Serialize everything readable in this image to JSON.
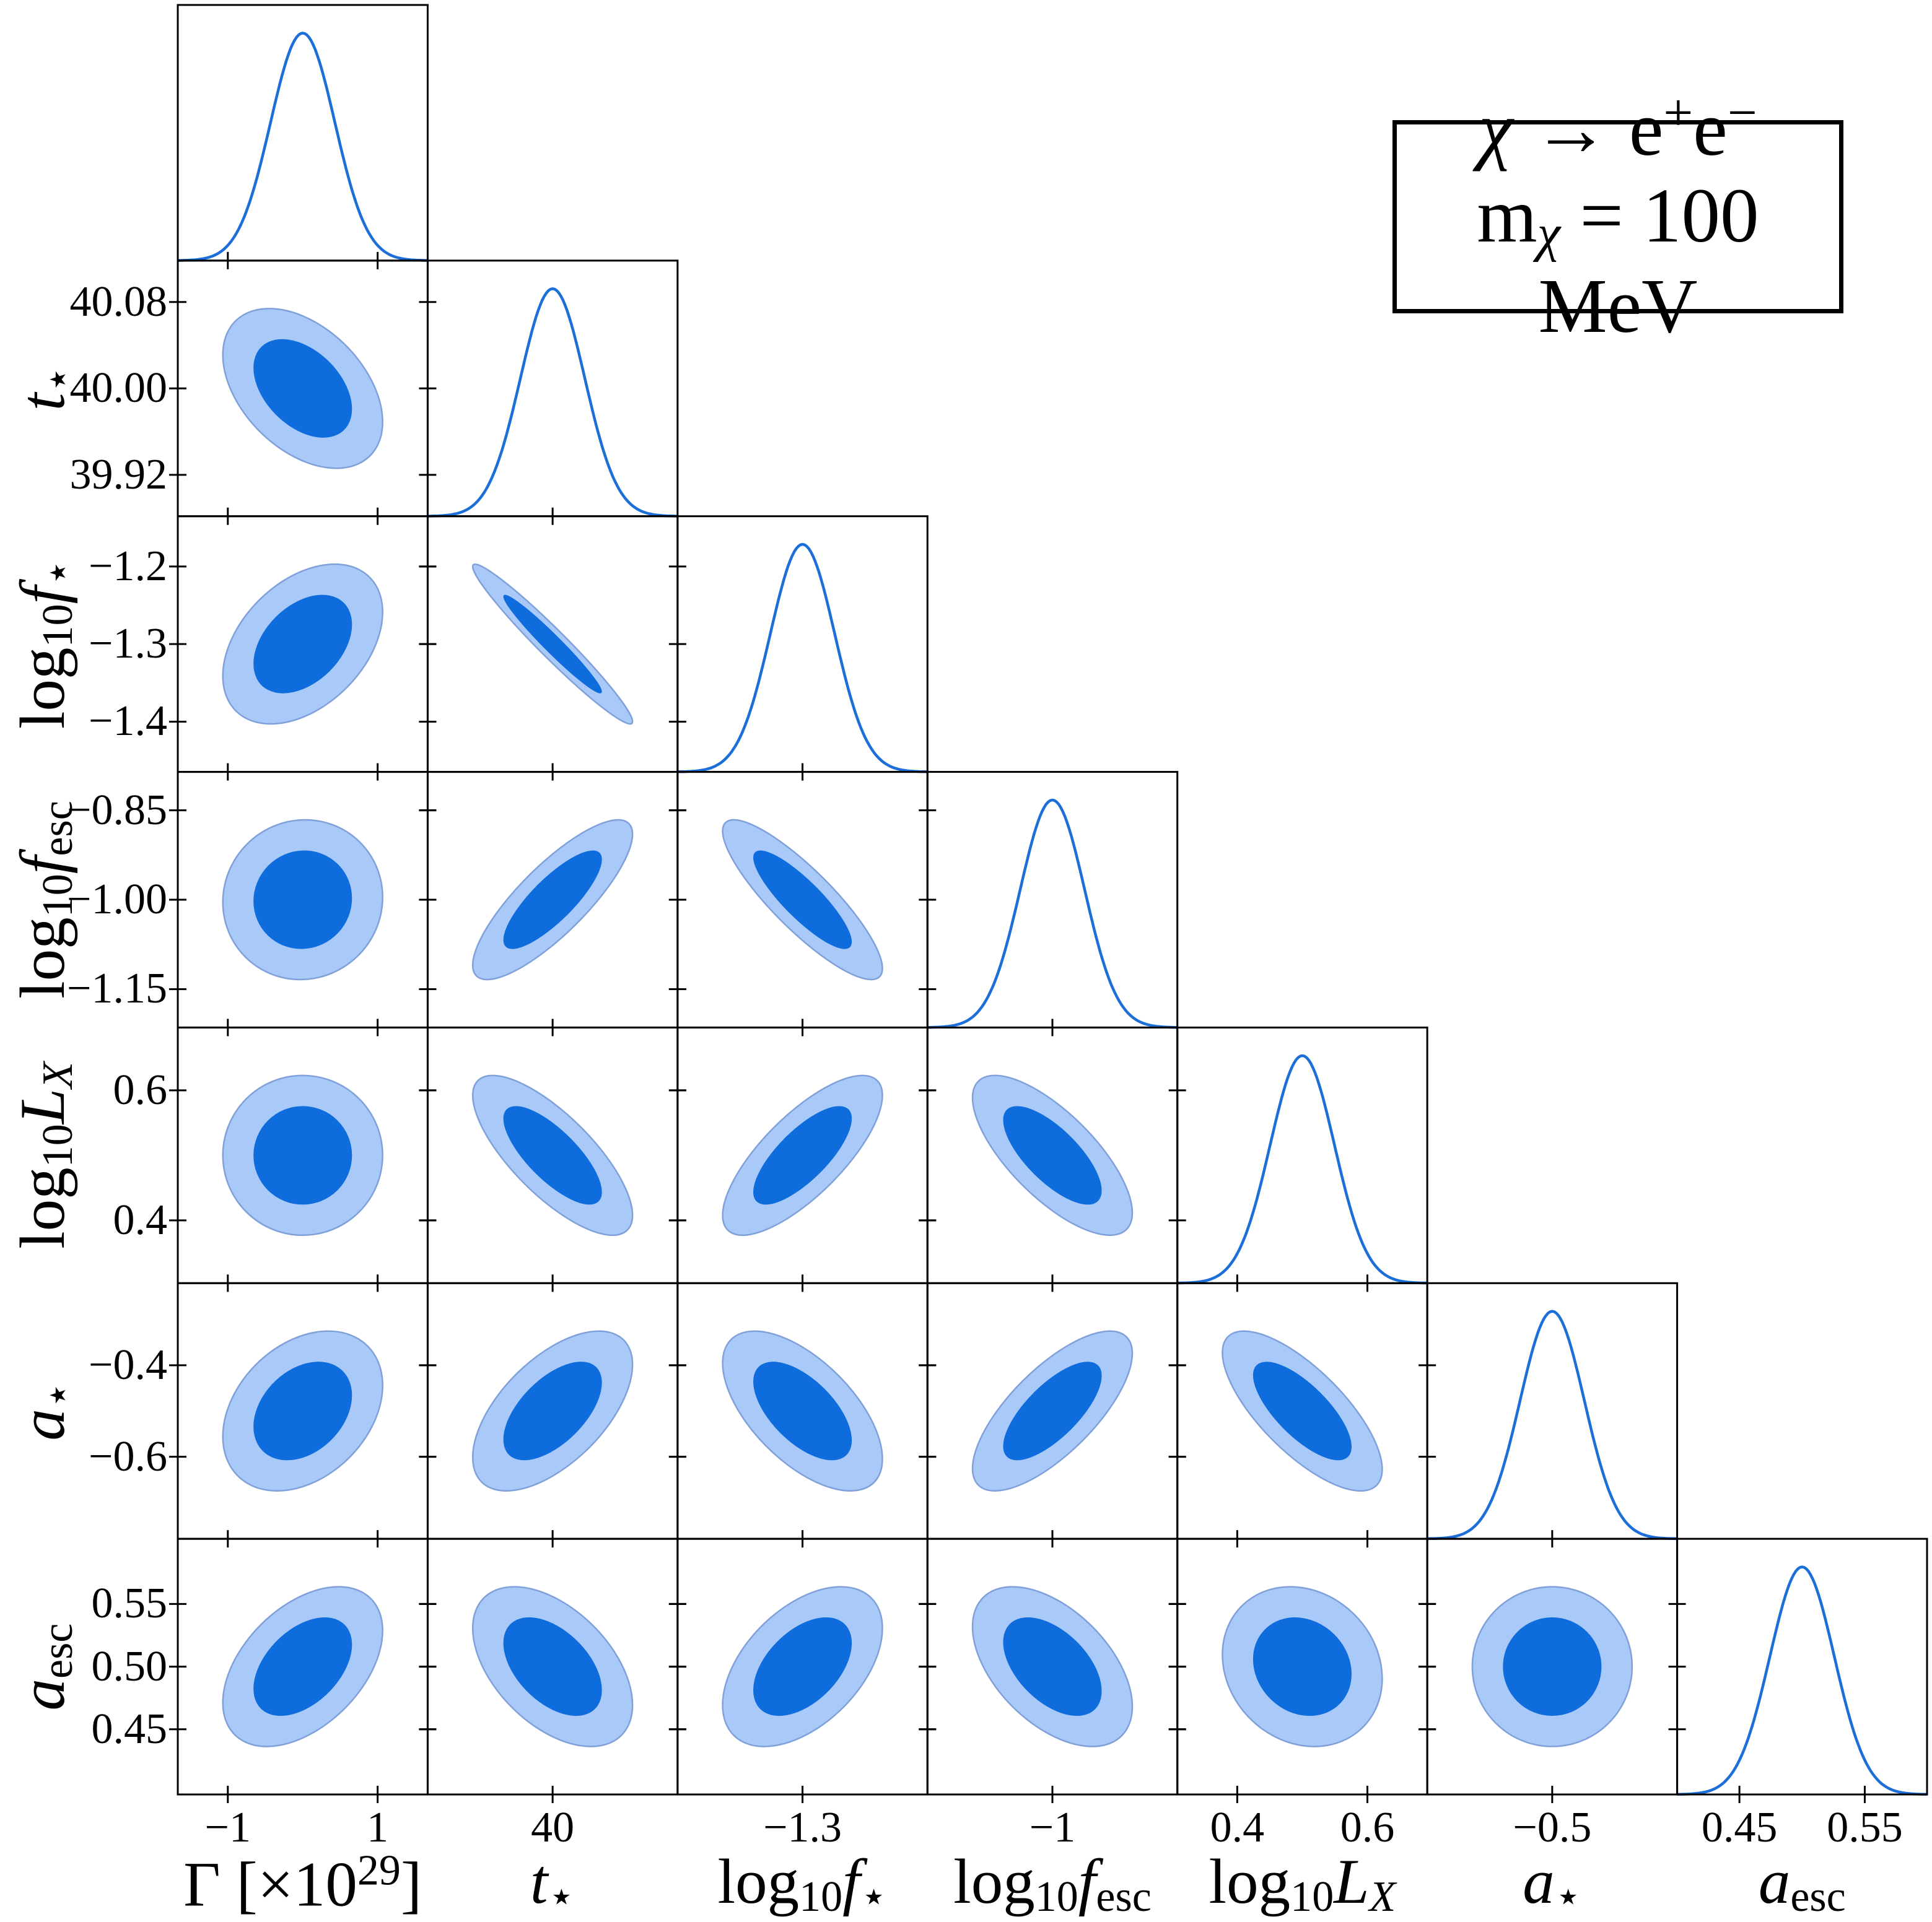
{
  "figure": {
    "background": "#ffffff",
    "title_box": {
      "line1_text": "χ → e⁺e⁻",
      "line2_text": "mχ = 100 MeV",
      "line1_segments": [
        {
          "t": "χ",
          "s": "i"
        },
        {
          "t": " → e",
          "s": "n"
        },
        {
          "t": "+",
          "s": "sup"
        },
        {
          "t": "e",
          "s": "n"
        },
        {
          "t": "−",
          "s": "sup"
        }
      ],
      "line2_segments": [
        {
          "t": "m",
          "s": "n"
        },
        {
          "t": "χ",
          "s": "subi"
        },
        {
          "t": " = 100 MeV",
          "s": "n"
        }
      ]
    }
  },
  "chart_data": {
    "type": "corner_plot_2d_contours",
    "n_params": 7,
    "grid": "lower-triangle 7x7; diagonal = 1D marginal Gaussians, off-diagonal = 68% and 95% contour ellipses",
    "colors": {
      "curve_line": "#1C6FD8",
      "contour_outer_fill": "#A9CAF8",
      "contour_outer_edge": "#7FA0D9",
      "contour_inner_fill": "#0E6CDC",
      "spine": "#000000",
      "text": "#000000",
      "background": "#ffffff"
    },
    "contour_levels_sigma": [
      1.52,
      2.48
    ],
    "legend_position": "top-right",
    "parameters": [
      {
        "name": "Gamma_x1e29",
        "label_text": "Γ [×10²⁹]",
        "label_segments": [
          {
            "t": "Γ [×10",
            "s": "n"
          },
          {
            "t": "29",
            "s": "sup"
          },
          {
            "t": "]",
            "s": "n"
          }
        ],
        "mean": 0.0,
        "sigma": 0.43,
        "axis_range": [
          -1.7,
          1.65
        ],
        "x_ticks": [
          {
            "v": -1,
            "l": "−1"
          },
          {
            "v": 1,
            "l": "1"
          }
        ],
        "y_ticks": []
      },
      {
        "name": "t_star",
        "label_text": "t⋆",
        "label_segments": [
          {
            "t": "t",
            "s": "i"
          },
          {
            "t": "⋆",
            "s": "sub"
          }
        ],
        "mean": 40.0,
        "sigma": 0.0298,
        "axis_range": [
          39.88,
          40.12
        ],
        "x_ticks": [
          {
            "v": 40,
            "l": "40"
          }
        ],
        "y_ticks": [
          {
            "v": 40.08,
            "l": "40.08"
          },
          {
            "v": 40.0,
            "l": "40.00"
          },
          {
            "v": 39.92,
            "l": "39.92"
          }
        ]
      },
      {
        "name": "log10_f_star",
        "label_text": "log₁₀f⋆",
        "label_segments": [
          {
            "t": "log",
            "s": "n"
          },
          {
            "t": "10",
            "s": "sub"
          },
          {
            "t": "f",
            "s": "i"
          },
          {
            "t": "⋆",
            "s": "sub"
          }
        ],
        "mean": -1.3,
        "sigma": 0.0415,
        "axis_range": [
          -1.47,
          -1.13
        ],
        "x_ticks": [
          {
            "v": -1.3,
            "l": "−1.3"
          }
        ],
        "y_ticks": [
          {
            "v": -1.2,
            "l": "−1.2"
          },
          {
            "v": -1.3,
            "l": "−1.3"
          },
          {
            "v": -1.4,
            "l": "−1.4"
          }
        ]
      },
      {
        "name": "log10_f_esc",
        "label_text": "log₁₀f esc",
        "label_segments": [
          {
            "t": "log",
            "s": "n"
          },
          {
            "t": "10",
            "s": "sub"
          },
          {
            "t": "f",
            "s": "i"
          },
          {
            "t": "esc",
            "s": "sub"
          }
        ],
        "mean": -1.0,
        "sigma": 0.054,
        "axis_range": [
          -1.22,
          -0.78
        ],
        "x_ticks": [
          {
            "v": -1,
            "l": "−1"
          }
        ],
        "y_ticks": [
          {
            "v": -0.85,
            "l": "−0.85"
          },
          {
            "v": -1.0,
            "l": "−1.00"
          },
          {
            "v": -1.15,
            "l": "−1.15"
          }
        ]
      },
      {
        "name": "log10_LX",
        "label_text": "log₁₀L X",
        "label_segments": [
          {
            "t": "log",
            "s": "n"
          },
          {
            "t": "10",
            "s": "sub"
          },
          {
            "t": "L",
            "s": "i"
          },
          {
            "t": "X",
            "s": "subi"
          }
        ],
        "mean": 0.5,
        "sigma": 0.0495,
        "axis_range": [
          0.3,
          0.7
        ],
        "x_ticks": [
          {
            "v": 0.4,
            "l": "0.4"
          },
          {
            "v": 0.6,
            "l": "0.6"
          }
        ],
        "y_ticks": [
          {
            "v": 0.6,
            "l": "0.6"
          },
          {
            "v": 0.4,
            "l": "0.4"
          }
        ]
      },
      {
        "name": "a_star",
        "label_text": "a⋆",
        "label_segments": [
          {
            "t": "a",
            "s": "i"
          },
          {
            "t": "⋆",
            "s": "sub"
          }
        ],
        "mean": -0.5,
        "sigma": 0.0704,
        "axis_range": [
          -0.78,
          -0.22
        ],
        "x_ticks": [
          {
            "v": -0.5,
            "l": "−0.5"
          }
        ],
        "y_ticks": [
          {
            "v": -0.4,
            "l": "−0.4"
          },
          {
            "v": -0.6,
            "l": "−0.6"
          }
        ]
      },
      {
        "name": "a_esc",
        "label_text": "a esc",
        "label_segments": [
          {
            "t": "a",
            "s": "i"
          },
          {
            "t": "esc",
            "s": "sub"
          }
        ],
        "mean": 0.5,
        "sigma": 0.0257,
        "axis_range": [
          0.395,
          0.605
        ],
        "x_ticks": [
          {
            "v": 0.45,
            "l": "0.45"
          },
          {
            "v": 0.55,
            "l": "0.55"
          }
        ],
        "y_ticks": [
          {
            "v": 0.55,
            "l": "0.55"
          },
          {
            "v": 0.5,
            "l": "0.50"
          },
          {
            "v": 0.45,
            "l": "0.45"
          }
        ]
      }
    ],
    "correlations": [
      [
        1.0,
        -0.42,
        0.4,
        0.03,
        0.0,
        0.32,
        0.45
      ],
      [
        -0.42,
        1.0,
        -0.97,
        0.82,
        -0.75,
        0.58,
        -0.48
      ],
      [
        0.4,
        -0.97,
        1.0,
        -0.86,
        0.75,
        -0.6,
        0.48
      ],
      [
        0.03,
        0.82,
        -0.86,
        1.0,
        -0.72,
        0.72,
        -0.5
      ],
      [
        0.0,
        -0.75,
        0.75,
        -0.72,
        1.0,
        -0.73,
        -0.15
      ],
      [
        0.32,
        0.58,
        -0.6,
        0.72,
        -0.73,
        1.0,
        0.0
      ],
      [
        0.45,
        -0.48,
        0.48,
        -0.5,
        -0.15,
        0.0,
        1.0
      ]
    ]
  }
}
